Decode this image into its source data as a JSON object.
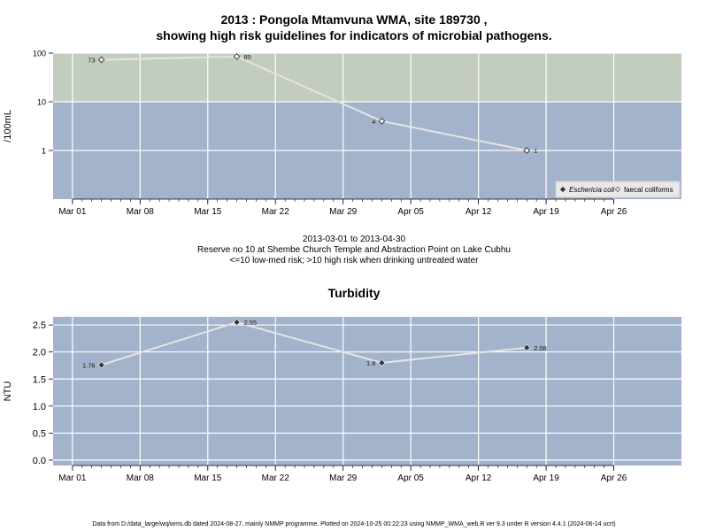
{
  "header": {
    "title_line1": "2013 : Pongola Mtamvuna WMA, site 189730 ,",
    "title_line2": "showing high risk guidelines for indicators of microbial pathogens."
  },
  "caption": {
    "date_range": "2013-03-01 to 2013-04-30",
    "site_description": "Reserve no 10 at Shembe Church Temple and Abstraction Point on Lake Cubhu",
    "risk_note": "<=10 low-med risk; >10 high risk when drinking untreated water"
  },
  "footer": {
    "text": "Data from D:/data_large/wq/wms.db dated 2024-08-27, mainly NMMP programme. Plotted on 2024-10-25 00:22:23 using NMMP_WMA_web.R ver 9.3 under R version 4.4.1 (2024-06-14 ucrt)"
  },
  "chart_data": [
    {
      "type": "line",
      "title": "",
      "xlabel": "",
      "ylabel": "/100mL",
      "y_scale": "log",
      "ylim": [
        0.1,
        100
      ],
      "y_ticks": [
        1,
        10,
        100
      ],
      "y_tick_labels": [
        "1",
        "10",
        "100"
      ],
      "xlim": [
        "2013-02-27",
        "2013-05-03"
      ],
      "x_ticks": [
        "2013-03-01",
        "2013-03-08",
        "2013-03-15",
        "2013-03-22",
        "2013-03-29",
        "2013-04-05",
        "2013-04-12",
        "2013-04-19",
        "2013-04-26"
      ],
      "x_tick_labels": [
        "Mar 01",
        "Mar 08",
        "Mar 15",
        "Mar 22",
        "Mar 29",
        "Apr 05",
        "Apr 12",
        "Apr 19",
        "Apr 26"
      ],
      "grid": true,
      "threshold": 10,
      "band_colors": {
        "high_risk": "#c2ccbf",
        "low_med_risk": "#a2b3cb"
      },
      "line_color": "#e4e4e4",
      "series": [
        {
          "name": "faecal coliforms",
          "marker": "open-diamond",
          "points": [
            {
              "x": "2013-03-04",
              "y": 73,
              "label": "73"
            },
            {
              "x": "2013-03-18",
              "y": 85,
              "label": "85"
            },
            {
              "x": "2013-04-02",
              "y": 4,
              "label": "4"
            },
            {
              "x": "2013-04-17",
              "y": 1,
              "label": "1"
            }
          ]
        }
      ],
      "legend": {
        "position": "bottom-right",
        "entries": [
          {
            "label": "Eschericia coli",
            "marker": "filled-diamond",
            "italic": true
          },
          {
            "label": "faecal coliforms",
            "marker": "open-diamond",
            "italic": false
          }
        ]
      }
    },
    {
      "type": "line",
      "title": "Turbidity",
      "xlabel": "",
      "ylabel": "NTU",
      "ylim": [
        -0.1,
        2.65
      ],
      "y_ticks": [
        0,
        0.5,
        1,
        1.5,
        2,
        2.5
      ],
      "y_tick_labels": [
        "0.0",
        "0.5",
        "1.0",
        "1.5",
        "2.0",
        "2.5"
      ],
      "xlim": [
        "2013-02-27",
        "2013-05-03"
      ],
      "x_ticks": [
        "2013-03-01",
        "2013-03-08",
        "2013-03-15",
        "2013-03-22",
        "2013-03-29",
        "2013-04-05",
        "2013-04-12",
        "2013-04-19",
        "2013-04-26"
      ],
      "x_tick_labels": [
        "Mar 01",
        "Mar 08",
        "Mar 15",
        "Mar 22",
        "Mar 29",
        "Apr 05",
        "Apr 12",
        "Apr 19",
        "Apr 26"
      ],
      "grid": true,
      "background_color": "#a2b3cb",
      "line_color": "#e4e4e4",
      "series": [
        {
          "name": "",
          "marker": "filled-diamond",
          "points": [
            {
              "x": "2013-03-04",
              "y": 1.76,
              "label": "1.76"
            },
            {
              "x": "2013-03-18",
              "y": 2.55,
              "label": "2.55"
            },
            {
              "x": "2013-04-02",
              "y": 1.8,
              "label": "1.8"
            },
            {
              "x": "2013-04-17",
              "y": 2.08,
              "label": "2.08"
            }
          ]
        }
      ]
    }
  ]
}
